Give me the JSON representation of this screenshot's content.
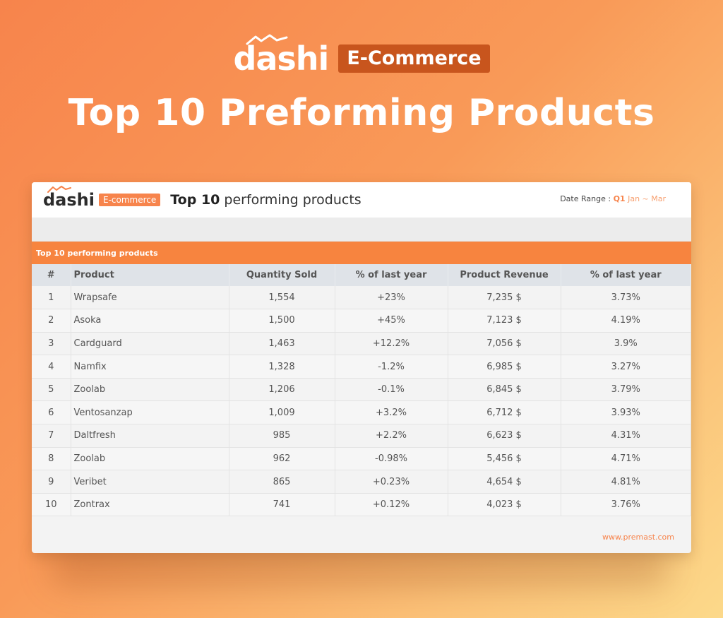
{
  "hero": {
    "logo": "dashi",
    "badge": "E-Commerce",
    "title": "Top 10 Preforming Products"
  },
  "card": {
    "logo": "dashi",
    "badge": "E-commerce",
    "title_strong": "Top 10",
    "title_rest": "performing products",
    "date_range_label": "Date Range :",
    "date_range_quarter": "Q1",
    "date_range_months": "Jan ~ Mar",
    "section_label": "Top 10 performing products",
    "footer_url": "www.premast.com"
  },
  "table": {
    "headers": [
      "#",
      "Product",
      "Quantity Sold",
      "% of last year",
      "Product Revenue",
      "% of last year"
    ],
    "rows": [
      [
        "1",
        "Wrapsafe",
        "1,554",
        "+23%",
        "7,235 $",
        "3.73%"
      ],
      [
        "2",
        "Asoka",
        "1,500",
        "+45%",
        "7,123 $",
        "4.19%"
      ],
      [
        "3",
        "Cardguard",
        "1,463",
        "+12.2%",
        "7,056 $",
        "3.9%"
      ],
      [
        "4",
        "Namfix",
        "1,328",
        "-1.2%",
        "6,985 $",
        "3.27%"
      ],
      [
        "5",
        "Zoolab",
        "1,206",
        "-0.1%",
        "6,845 $",
        "3.79%"
      ],
      [
        "6",
        "Ventosanzap",
        "1,009",
        "+3.2%",
        "6,712 $",
        "3.93%"
      ],
      [
        "7",
        "Daltfresh",
        "985",
        "+2.2%",
        "6,623 $",
        "4.31%"
      ],
      [
        "8",
        "Zoolab",
        "962",
        "-0.98%",
        "5,456 $",
        "4.71%"
      ],
      [
        "9",
        "Veribet",
        "865",
        "+0.23%",
        "4,654 $",
        "4.81%"
      ],
      [
        "10",
        "Zontrax",
        "741",
        "+0.12%",
        "4,023 $",
        "3.76%"
      ]
    ]
  },
  "colors": {
    "accent": "#f7844c",
    "badge_dark": "#c8551d",
    "header_bg": "#dfe3e8"
  }
}
